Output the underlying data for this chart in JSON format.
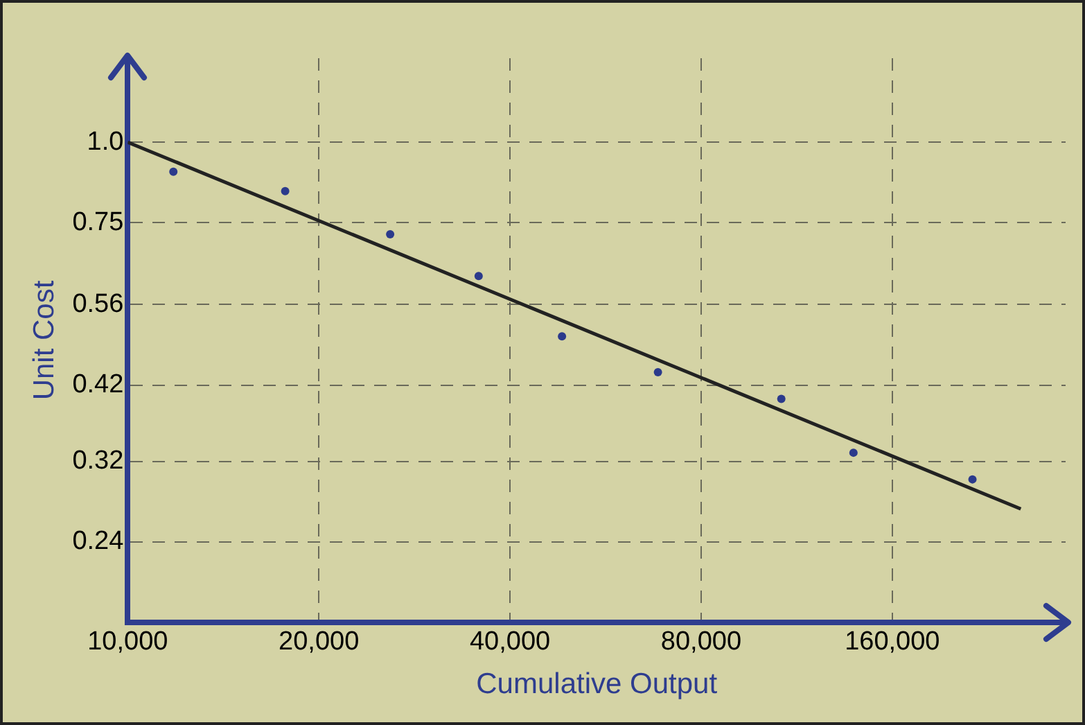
{
  "chart_data": {
    "type": "scatter",
    "xlabel": "Cumulative Output",
    "ylabel": "Unit Cost",
    "log": "xy",
    "grid": true,
    "legend": false,
    "marker": "circle",
    "xlim": [
      10000,
      300000
    ],
    "ylim": [
      0.18,
      1.35
    ],
    "xticks": [
      {
        "value": 10000,
        "label": "10,000"
      },
      {
        "value": 20000,
        "label": "20,000"
      },
      {
        "value": 40000,
        "label": "40,000"
      },
      {
        "value": 80000,
        "label": "80,000"
      },
      {
        "value": 160000,
        "label": "160,000"
      }
    ],
    "yticks": [
      {
        "value": 1,
        "label": "1.0"
      },
      0.75,
      0.56,
      0.42,
      0.32,
      0.24
    ],
    "series": [
      {
        "type": "scatter",
        "color": "#2b3a8c",
        "x": [
          11800,
          17700,
          25900,
          35700,
          48300,
          68400,
          107000,
          139000,
          214000
        ],
        "values": [
          0.9,
          0.84,
          0.72,
          0.62,
          0.5,
          0.44,
          0.4,
          0.33,
          0.3
        ]
      },
      {
        "type": "line",
        "color": "#222222",
        "line_style": "solid",
        "marker": "none",
        "x": [
          10000,
          255000
        ],
        "values": [
          1.0,
          0.27
        ]
      }
    ]
  }
}
